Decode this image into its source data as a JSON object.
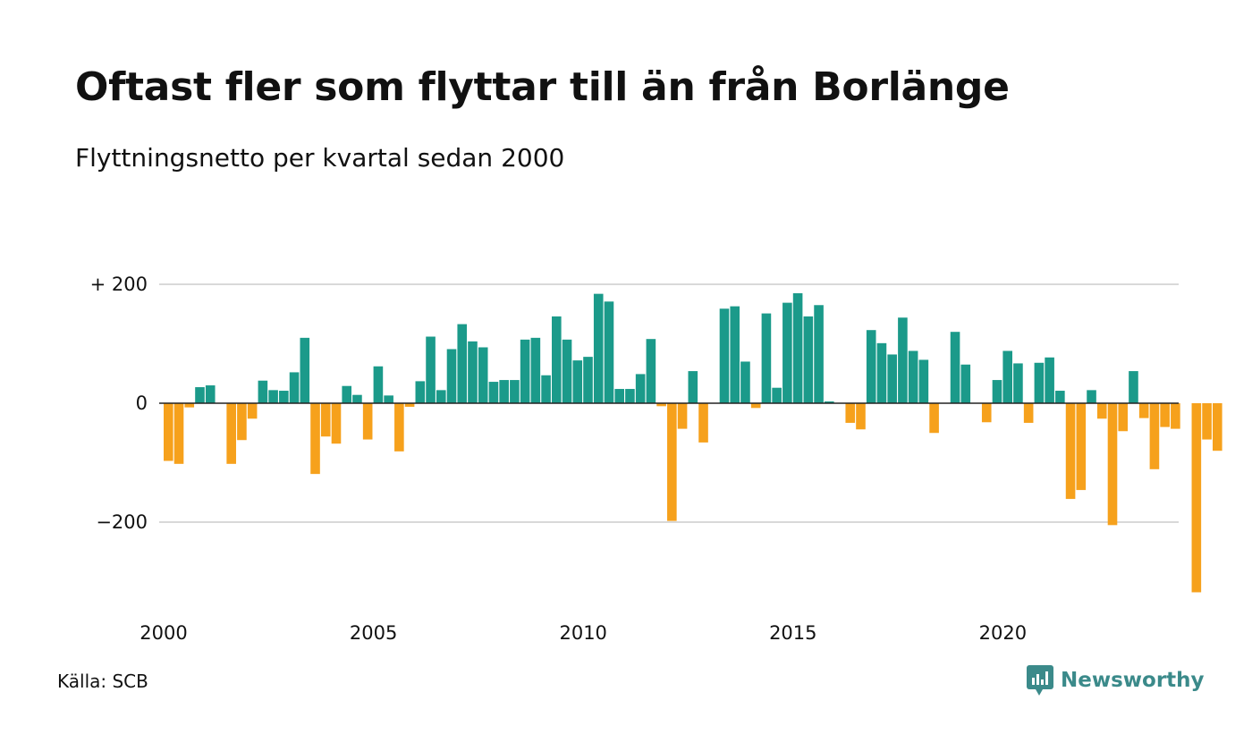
{
  "colors": {
    "positive": "#1b9a8a",
    "negative": "#f6a11c",
    "grid": "#d9d9d9",
    "zero": "#222222",
    "brand": "#3b8a8a"
  },
  "chart_data": {
    "type": "bar",
    "title": "Oftast fler som flyttar till än från Borlänge",
    "subtitle": "Flyttningsnetto per kvartal sedan 2000",
    "xlabel": "",
    "ylabel": "",
    "ylim": [
      -320,
      200
    ],
    "xlim": [
      2000,
      2024.75
    ],
    "grid": true,
    "legend": "none",
    "y_ticks": [
      {
        "value": 200,
        "label": "+ 200"
      },
      {
        "value": 0,
        "label": "0"
      },
      {
        "value": -200,
        "label": "−200"
      }
    ],
    "x_ticks": [
      {
        "value": 2000,
        "label": "2000"
      },
      {
        "value": 2005,
        "label": "2005"
      },
      {
        "value": 2010,
        "label": "2010"
      },
      {
        "value": 2015,
        "label": "2015"
      },
      {
        "value": 2020,
        "label": "2020"
      }
    ],
    "start_year": 2000,
    "quarters_per_year": 4,
    "values": [
      -97,
      -102,
      -7,
      27,
      30,
      0,
      -102,
      -62,
      -26,
      38,
      22,
      21,
      52,
      110,
      -119,
      -56,
      -68,
      29,
      14,
      -61,
      62,
      13,
      -81,
      -6,
      37,
      112,
      22,
      91,
      133,
      104,
      94,
      36,
      39,
      39,
      107,
      110,
      47,
      146,
      107,
      72,
      78,
      184,
      171,
      24,
      24,
      49,
      108,
      -5,
      -198,
      -43,
      54,
      -66,
      0,
      159,
      163,
      70,
      -8,
      151,
      26,
      169,
      185,
      146,
      165,
      3,
      0,
      -33,
      -44,
      123,
      101,
      82,
      144,
      88,
      73,
      -50,
      0,
      120,
      65,
      0,
      -32,
      39,
      88,
      67,
      -33,
      68,
      77,
      21,
      -161,
      -146,
      22,
      -26,
      -205,
      -47,
      54,
      -25,
      -111,
      -40,
      -43,
      0,
      -318,
      -61,
      -80
    ]
  },
  "footer": {
    "source": "Källa: SCB",
    "brand_name": "Newsworthy"
  }
}
